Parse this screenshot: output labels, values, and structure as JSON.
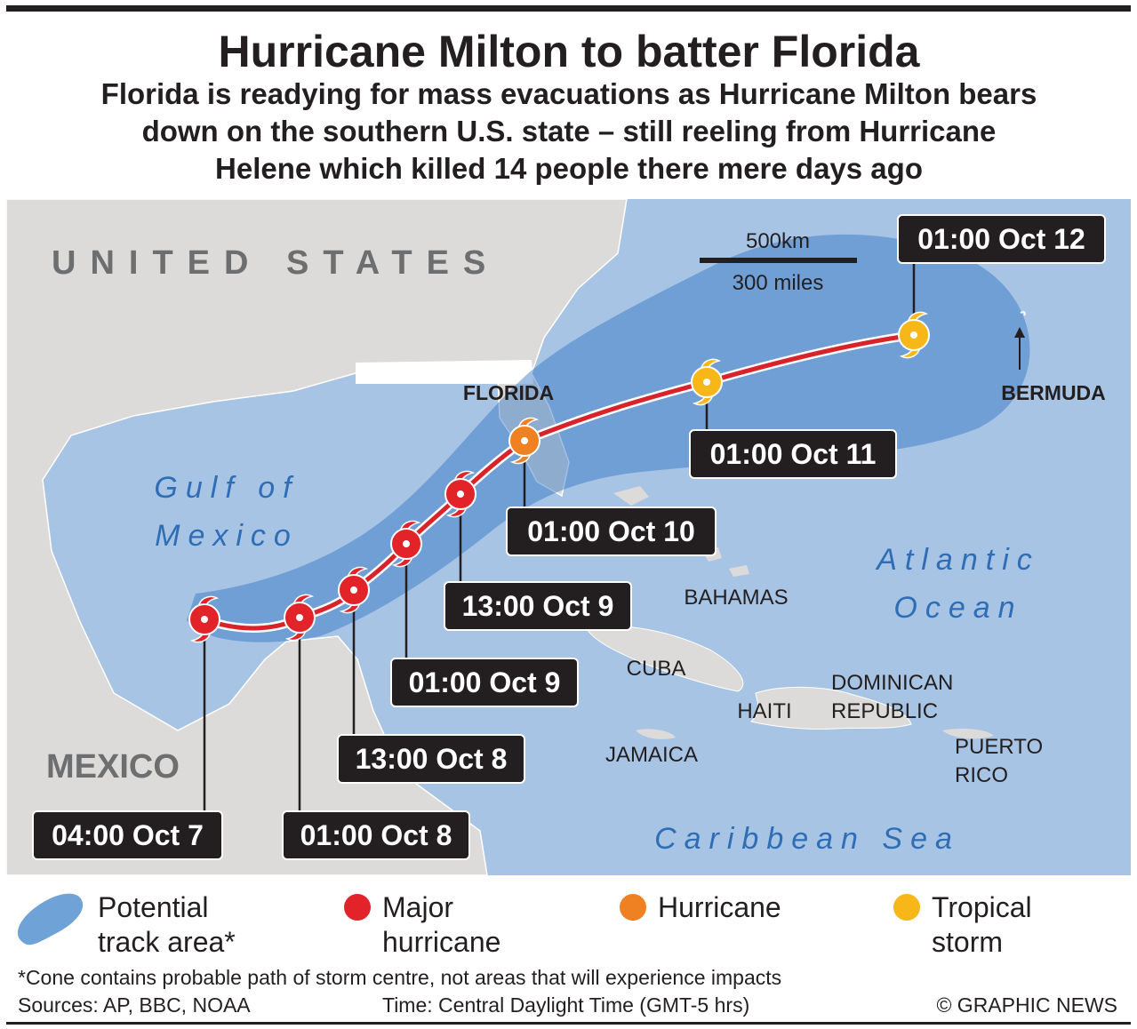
{
  "header": {
    "title": "Hurricane Milton to batter Florida",
    "subtitle": [
      "Florida is readying for mass evacuations as Hurricane Milton bears",
      "down on the southern U.S. state – still reeling from Hurricane",
      "Helene which killed 14 people there mere days ago"
    ]
  },
  "map": {
    "labels": [
      {
        "lines": [
          "UNITED STATES"
        ],
        "style": "country"
      },
      {
        "lines": [
          "FLORIDA"
        ],
        "style": "bold"
      },
      {
        "lines": [
          "Gulf of",
          "Mexico"
        ],
        "style": "sea"
      },
      {
        "lines": [
          "Atlantic",
          "Ocean"
        ],
        "style": "sea"
      },
      {
        "lines": [
          "BAHAMAS"
        ],
        "style": "plain"
      },
      {
        "lines": [
          "CUBA"
        ],
        "style": "plain"
      },
      {
        "lines": [
          "HAITI"
        ],
        "style": "plain"
      },
      {
        "lines": [
          "DOMINICAN",
          "REPUBLIC"
        ],
        "style": "plain"
      },
      {
        "lines": [
          "JAMAICA"
        ],
        "style": "plain"
      },
      {
        "lines": [
          "PUERTO",
          "RICO"
        ],
        "style": "plain"
      },
      {
        "lines": [
          "MEXICO"
        ],
        "style": "countrybold"
      },
      {
        "lines": [
          "Caribbean Sea"
        ],
        "style": "sea"
      },
      {
        "lines": [
          "BERMUDA"
        ],
        "style": "bold"
      }
    ],
    "scale": {
      "km": "500km",
      "miles": "300 miles"
    },
    "track": [
      {
        "time": "04:00 Oct 7",
        "color": "#e2232a"
      },
      {
        "time": "01:00 Oct 8",
        "color": "#e2232a"
      },
      {
        "time": "13:00 Oct 8",
        "color": "#e2232a"
      },
      {
        "time": "01:00 Oct 9",
        "color": "#e2232a"
      },
      {
        "time": "13:00 Oct 9",
        "color": "#e2232a"
      },
      {
        "time": "01:00 Oct 10",
        "color": "#f08123"
      },
      {
        "time": "01:00 Oct 11",
        "color": "#f8b718"
      },
      {
        "time": "01:00 Oct 12",
        "color": "#f8b718"
      }
    ]
  },
  "legend": [
    {
      "lines": [
        "Potential",
        "track area*"
      ],
      "color": "#6fa3d8"
    },
    {
      "lines": [
        "Major",
        "hurricane"
      ],
      "color": "#e2232a"
    },
    {
      "lines": [
        "Hurricane"
      ],
      "color": "#f08123"
    },
    {
      "lines": [
        "Tropical",
        "storm"
      ],
      "color": "#f8b718"
    }
  ],
  "footer": {
    "note": "*Cone contains probable path of storm centre, not areas that will experience impacts",
    "sources": "Sources: AP, BBC, NOAA",
    "time": "Time: Central Daylight Time (GMT-5 hrs)",
    "credit": "© GRAPHIC NEWS"
  }
}
